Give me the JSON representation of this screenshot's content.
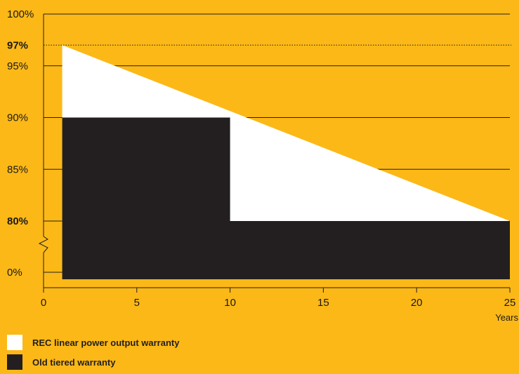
{
  "chart_data": {
    "type": "area",
    "xlabel": "Years",
    "ylabel": "",
    "xlim": [
      0,
      25
    ],
    "x_ticks": [
      "0",
      "5",
      "10",
      "15",
      "20",
      "25"
    ],
    "y_tick_labels": [
      "0%",
      "80%",
      "85%",
      "90%",
      "95%",
      "97%",
      "100%"
    ],
    "y_axis_break": true,
    "reference_line": {
      "label": "97%",
      "value": 97,
      "style": "dotted"
    },
    "series": [
      {
        "name": "REC linear power output warranty",
        "color": "#FFFFFF",
        "x": [
          1,
          25
        ],
        "y": [
          97,
          80
        ]
      },
      {
        "name": "Old tiered warranty",
        "color": "#231F20",
        "x": [
          1,
          10,
          10,
          25
        ],
        "y": [
          90,
          90,
          80,
          80
        ]
      }
    ]
  }
}
